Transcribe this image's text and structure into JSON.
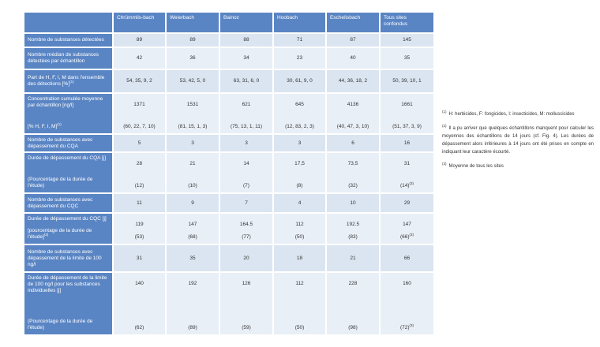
{
  "table": {
    "header": [
      "Chrümmlis-bach",
      "Weierbach",
      "Bainoz",
      "Hoobach",
      "Eschelisbach",
      "Tous sites confondus"
    ],
    "rows": [
      {
        "label": [
          "Nombre de substances détectées"
        ],
        "cells": [
          [
            89
          ],
          [
            89
          ],
          [
            88
          ],
          [
            71
          ],
          [
            87
          ],
          [
            145
          ]
        ]
      },
      {
        "label": [
          "Nombre médian de substances détectées par échantillon"
        ],
        "cells": [
          [
            42
          ],
          [
            36
          ],
          [
            34
          ],
          [
            23
          ],
          [
            40
          ],
          [
            35
          ]
        ]
      },
      {
        "label": [
          {
            "text": "Part de H, F, I, M dans l'ensemble des détections [%]",
            "sup": "(1)"
          }
        ],
        "cells": [
          [
            "54, 35, 9, 2"
          ],
          [
            "53, 42, 5, 0"
          ],
          [
            "63, 31, 6, 0"
          ],
          [
            "30, 61, 9, 0"
          ],
          [
            "44, 36, 18, 2"
          ],
          [
            "50, 39, 10, 1"
          ]
        ]
      },
      {
        "label": [
          "Concentration cumulée moyenne par échantillon [ng/l]",
          {
            "text": "[% H, F, I, M]",
            "sup": "(1)"
          }
        ],
        "cells": [
          [
            1371,
            "(60, 22, 7, 10)"
          ],
          [
            1531,
            "(81, 15, 1, 3)"
          ],
          [
            621,
            "(75, 13, 1, 11)"
          ],
          [
            645,
            "(12, 83, 2, 3)"
          ],
          [
            4136,
            "(40, 47, 3, 10)"
          ],
          [
            1661,
            "(51, 37, 3, 9)"
          ]
        ]
      },
      {
        "label": [
          "Nombre de substances avec dépassement du CQA"
        ],
        "cells": [
          [
            5
          ],
          [
            3
          ],
          [
            3
          ],
          [
            3
          ],
          [
            6
          ],
          [
            16
          ]
        ]
      },
      {
        "label": [
          "Durée de dépassement du CQA [j]",
          "(Pourcentage de la durée de l'étude)"
        ],
        "cells": [
          [
            28,
            "(12)"
          ],
          [
            21,
            "(10)"
          ],
          [
            14,
            "(7)"
          ],
          [
            "17,5",
            "(8)"
          ],
          [
            "73,5",
            "(32)"
          ],
          [
            31,
            {
              "text": "(14)",
              "sup": "(3)"
            }
          ]
        ]
      },
      {
        "label": [
          "Nombre de substances avec dépassement du CQC"
        ],
        "cells": [
          [
            11
          ],
          [
            9
          ],
          [
            7
          ],
          [
            4
          ],
          [
            10
          ],
          [
            29
          ]
        ]
      },
      {
        "label": [
          "Durée de dépassement du CQC [j]",
          {
            "text": "[pourcentage de la durée de l'étude]",
            "sup": "(3)"
          }
        ],
        "cells": [
          [
            119,
            "(53)"
          ],
          [
            147,
            "(68)"
          ],
          [
            164.5,
            "(77)"
          ],
          [
            112,
            "(50)"
          ],
          [
            192.5,
            "(83)"
          ],
          [
            147,
            {
              "text": "(66)",
              "sup": "(3)"
            }
          ]
        ]
      },
      {
        "label": [
          "Nombre de substances avec dépassement de la limite de 100 ng/l"
        ],
        "cells": [
          [
            31
          ],
          [
            35
          ],
          [
            20
          ],
          [
            18
          ],
          [
            21
          ],
          [
            66
          ]
        ]
      },
      {
        "label": [
          "Durée de dépassement de la limite de 100 ng/l pour les substances individuelles [j]",
          "(Pourcentage de la durée de l'étude)"
        ],
        "cells": [
          [
            140,
            "(62)"
          ],
          [
            192,
            "(89)"
          ],
          [
            126,
            "(59)"
          ],
          [
            112,
            "(50)"
          ],
          [
            228,
            "(98)"
          ],
          [
            160,
            {
              "text": "(72)",
              "sup": "(3)"
            }
          ]
        ]
      }
    ]
  },
  "notes": [
    {
      "sup": "(1)",
      "text": "H: herbicides, F: fongicides, I: insecticides, M: molluscicides"
    },
    {
      "sup": "(2)",
      "text": "Il a pu arriver que quelques échantillons manquent pour calculer les moyennes des échantillons de 14 jours (cf. Fig. 4). Les durées de dépassement alors inférieures à 14 jours ont été prises en compte en indiquant leur caractère écourté."
    },
    {
      "sup": "(3)",
      "text": "Moyenne de tous les sites"
    }
  ]
}
